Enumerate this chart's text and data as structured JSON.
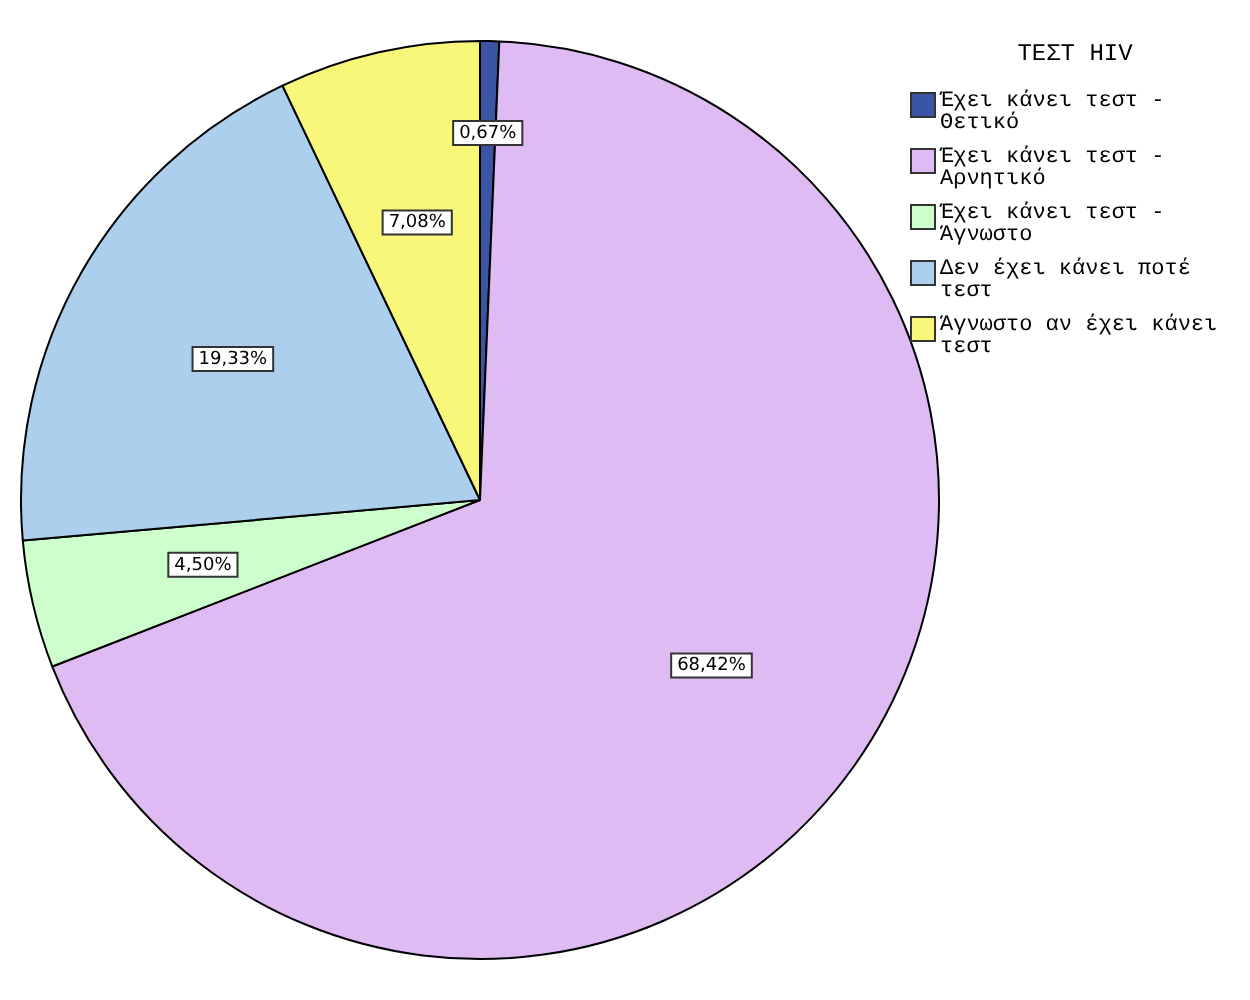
{
  "chart_data": {
    "type": "pie",
    "legend_title": "ΤΕΣΤ HIV",
    "legend": "top right",
    "categories": [
      "Έχει κάνει τεστ - Θετικό",
      "Έχει κάνει τεστ - Αρνητικό",
      "Έχει κάνει τεστ - Άγνωστο",
      "Δεν έχει κάνει ποτέ τεστ",
      "Άγνωστο αν έχει κάνει τεστ"
    ],
    "values": [
      0.67,
      68.42,
      4.5,
      19.33,
      7.08
    ],
    "value_labels": [
      "0,67%",
      "68,42%",
      "4,50%",
      "19,33%",
      "7,08%"
    ],
    "colors": [
      "#3b54a4",
      "#dfbbf3",
      "#ccffcc",
      "#abcfed",
      "#f8f77a"
    ]
  }
}
